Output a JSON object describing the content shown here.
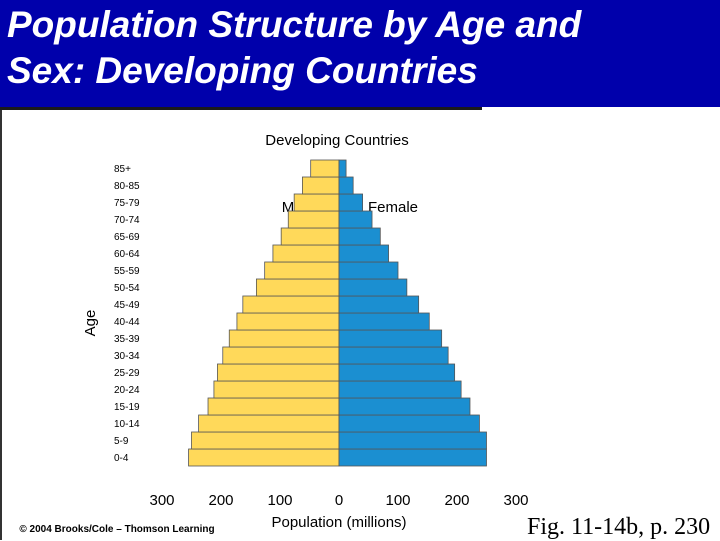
{
  "header": {
    "title_line1": "Population Structure by Age and",
    "title_line2": "Sex: Developing Countries",
    "background_color": "#0000ab",
    "text_color": "#ffffff"
  },
  "chart_data": {
    "type": "bar",
    "orientation": "horizontal-population-pyramid",
    "title": "Developing Countries",
    "xlabel": "Population (millions)",
    "ylabel": "Age",
    "xlim": [
      -300,
      300
    ],
    "x_ticks": [
      {
        "value": -300,
        "label": "300"
      },
      {
        "value": -200,
        "label": "200"
      },
      {
        "value": -100,
        "label": "100"
      },
      {
        "value": 0,
        "label": "0"
      },
      {
        "value": 100,
        "label": "100"
      },
      {
        "value": 200,
        "label": "200"
      },
      {
        "value": 300,
        "label": "300"
      }
    ],
    "categories": [
      "0-4",
      "5-9",
      "10-14",
      "15-19",
      "20-24",
      "25-29",
      "30-34",
      "35-39",
      "40-44",
      "45-49",
      "50-54",
      "55-59",
      "60-64",
      "65-69",
      "70-74",
      "75-79",
      "80-85",
      "85+"
    ],
    "series": [
      {
        "name": "Male",
        "color": "#ffd95a",
        "values": [
          255,
          250,
          238,
          222,
          212,
          206,
          197,
          186,
          173,
          163,
          140,
          126,
          112,
          98,
          86,
          76,
          62,
          48
        ]
      },
      {
        "name": "Female",
        "color": "#1b8fd1",
        "values": [
          250,
          250,
          238,
          222,
          207,
          196,
          185,
          174,
          153,
          135,
          115,
          100,
          84,
          70,
          56,
          40,
          24,
          12
        ]
      }
    ],
    "legend_position": "top-center",
    "grid": false
  },
  "footer": {
    "copyright": "© 2004 Brooks/Cole – Thomson Learning",
    "figure_ref": "Fig. 11-14b, p. 230"
  }
}
